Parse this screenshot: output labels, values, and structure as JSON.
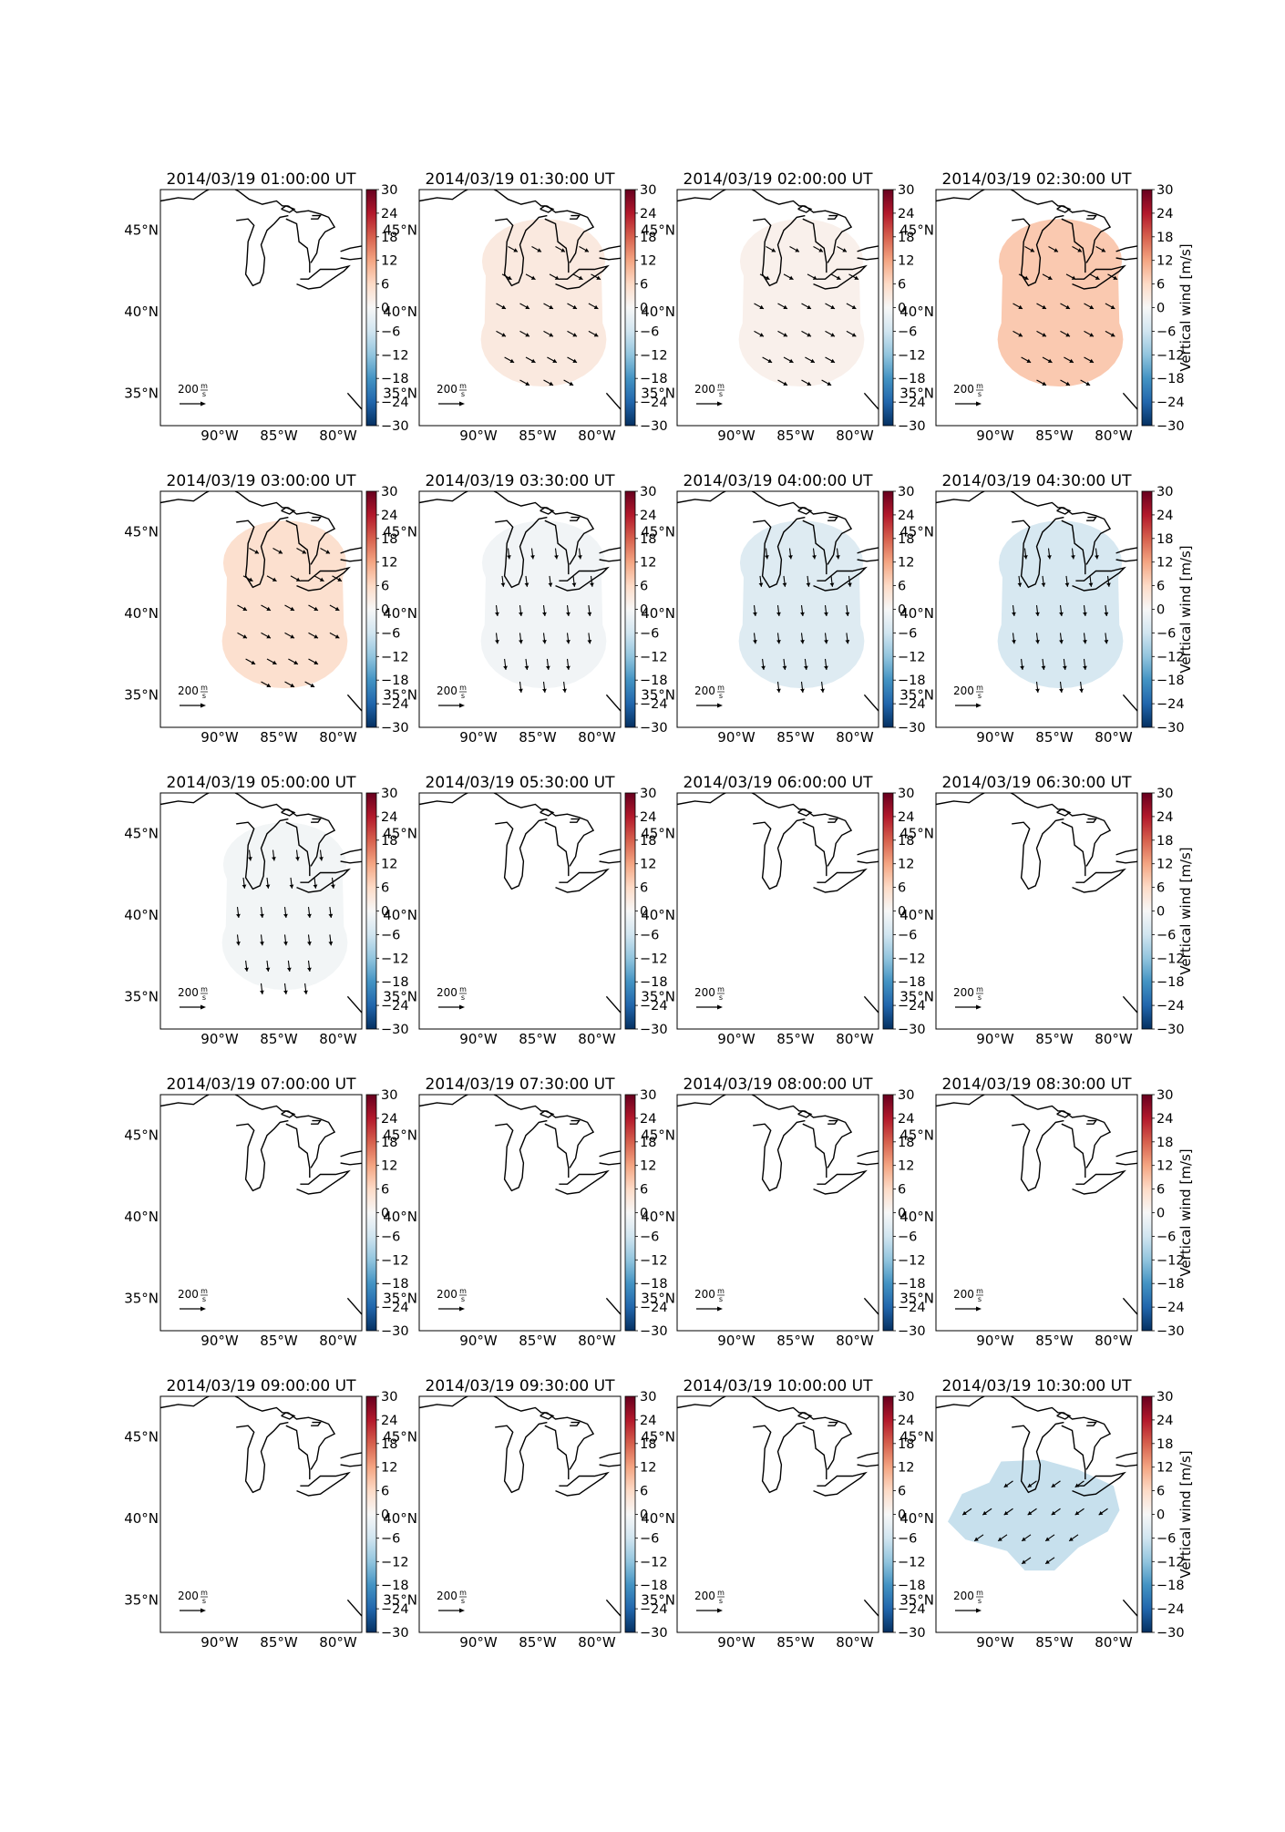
{
  "figure": {
    "rows": 5,
    "cols": 4
  },
  "colorbar": {
    "ticks": [
      "30",
      "24",
      "18",
      "12",
      "6",
      "0",
      "−6",
      "−12",
      "−18",
      "−24",
      "−30"
    ],
    "label": "Vertical wind [m/s]",
    "range": [
      -30,
      30
    ],
    "cmap": "RdBu_r"
  },
  "map": {
    "lon_ticks": [
      "90°W",
      "85°W",
      "80°W"
    ],
    "lat_ticks": [
      "45°N",
      "40°N",
      "35°N"
    ],
    "lon_range": [
      -95,
      -78
    ],
    "lat_range": [
      33,
      47.5
    ]
  },
  "scale_arrow": {
    "value": "200",
    "unit_num": "m",
    "unit_den": "s"
  },
  "panels": [
    {
      "title": "2014/03/19 01:00:00 UT",
      "w": 0,
      "shape": "none",
      "dir": "none"
    },
    {
      "title": "2014/03/19 01:30:00 UT",
      "w": 3,
      "shape": "figure8",
      "dir": "se"
    },
    {
      "title": "2014/03/19 02:00:00 UT",
      "w": 1.5,
      "shape": "figure8",
      "dir": "se"
    },
    {
      "title": "2014/03/19 02:30:00 UT",
      "w": 8,
      "shape": "figure8",
      "dir": "se"
    },
    {
      "title": "2014/03/19 03:00:00 UT",
      "w": 5,
      "shape": "figure8",
      "dir": "se"
    },
    {
      "title": "2014/03/19 03:30:00 UT",
      "w": -1,
      "shape": "figure8",
      "dir": "s"
    },
    {
      "title": "2014/03/19 04:00:00 UT",
      "w": -4,
      "shape": "figure8",
      "dir": "s"
    },
    {
      "title": "2014/03/19 04:30:00 UT",
      "w": -5,
      "shape": "figure8",
      "dir": "s"
    },
    {
      "title": "2014/03/19 05:00:00 UT",
      "w": -0.8,
      "shape": "figure8",
      "dir": "s"
    },
    {
      "title": "2014/03/19 05:30:00 UT",
      "w": 0,
      "shape": "none",
      "dir": "none"
    },
    {
      "title": "2014/03/19 06:00:00 UT",
      "w": 0,
      "shape": "none",
      "dir": "none"
    },
    {
      "title": "2014/03/19 06:30:00 UT",
      "w": 0,
      "shape": "none",
      "dir": "none"
    },
    {
      "title": "2014/03/19 07:00:00 UT",
      "w": 0,
      "shape": "none",
      "dir": "none"
    },
    {
      "title": "2014/03/19 07:30:00 UT",
      "w": 0,
      "shape": "none",
      "dir": "none"
    },
    {
      "title": "2014/03/19 08:00:00 UT",
      "w": 0,
      "shape": "none",
      "dir": "none"
    },
    {
      "title": "2014/03/19 08:30:00 UT",
      "w": 0,
      "shape": "none",
      "dir": "none"
    },
    {
      "title": "2014/03/19 09:00:00 UT",
      "w": 0,
      "shape": "none",
      "dir": "none"
    },
    {
      "title": "2014/03/19 09:30:00 UT",
      "w": 0,
      "shape": "none",
      "dir": "none"
    },
    {
      "title": "2014/03/19 10:00:00 UT",
      "w": 0,
      "shape": "none",
      "dir": "none"
    },
    {
      "title": "2014/03/19 10:30:00 UT",
      "w": -7,
      "shape": "blob",
      "dir": "sw"
    }
  ]
}
